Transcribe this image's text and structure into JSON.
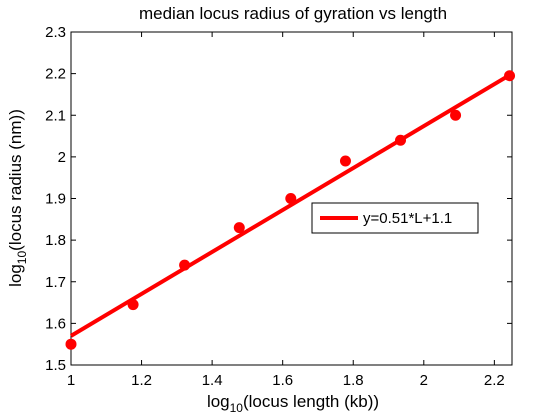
{
  "chart_data": {
    "type": "scatter",
    "title": "median locus radius of gyration vs length",
    "xlabel": {
      "prefix": "log",
      "sub": "10",
      "rest": "(locus length (kb))"
    },
    "ylabel": {
      "prefix": "log",
      "sub": "10",
      "rest": "(locus radius (nm))"
    },
    "xlim": [
      1,
      2.25
    ],
    "ylim": [
      1.5,
      2.3
    ],
    "xticks": [
      1,
      1.2,
      1.4,
      1.6,
      1.8,
      2,
      2.2
    ],
    "xtick_labels": [
      "1",
      "1.2",
      "1.4",
      "1.6",
      "1.8",
      "2",
      "2.2"
    ],
    "yticks": [
      1.5,
      1.6,
      1.7,
      1.8,
      1.9,
      2.0,
      2.1,
      2.2,
      2.3
    ],
    "ytick_labels": [
      "1.5",
      "1.6",
      "1.7",
      "1.8",
      "1.9",
      "2",
      "2.1",
      "2.2",
      "2.3"
    ],
    "grid": false,
    "series": [
      {
        "kind": "points",
        "color": "#ff0000",
        "x": [
          1.0,
          1.176,
          1.322,
          1.477,
          1.623,
          1.778,
          1.934,
          2.09,
          2.243
        ],
        "y": [
          1.55,
          1.645,
          1.74,
          1.83,
          1.9,
          1.99,
          2.04,
          2.1,
          2.195
        ]
      },
      {
        "kind": "fit-line",
        "name": "y=0.51*L+1.1",
        "color": "#ff0000",
        "x": [
          1.0,
          2.25
        ],
        "y": [
          1.57,
          2.2
        ]
      }
    ],
    "legend": {
      "placement": "right",
      "entries": [
        "y=0.51*L+1.1"
      ]
    }
  }
}
